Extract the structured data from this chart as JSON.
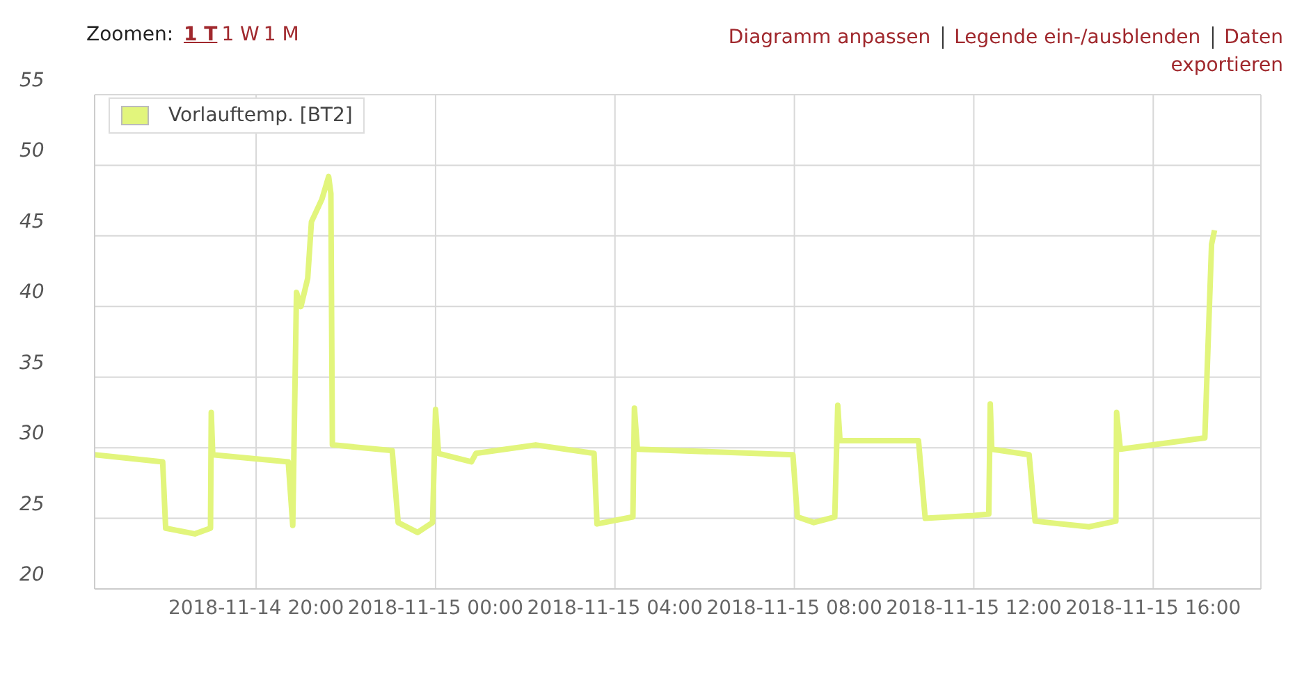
{
  "chart_data": {
    "type": "line",
    "x": [
      "2018-11-14T16:24",
      "2018-11-14T17:55",
      "2018-11-14T17:59",
      "2018-11-14T18:38",
      "2018-11-14T18:59",
      "2018-11-14T19:00",
      "2018-11-14T19:02",
      "2018-11-14T20:43",
      "2018-11-14T20:49",
      "2018-11-14T20:54",
      "2018-11-14T21:00",
      "2018-11-14T21:09",
      "2018-11-14T21:14",
      "2018-11-14T21:28",
      "2018-11-14T21:37",
      "2018-11-14T21:40",
      "2018-11-14T21:42",
      "2018-11-14T23:02",
      "2018-11-14T23:10",
      "2018-11-14T23:36",
      "2018-11-14T23:56",
      "2018-11-15T00:00",
      "2018-11-15T00:04",
      "2018-11-15T00:48",
      "2018-11-15T00:54",
      "2018-11-15T02:14",
      "2018-11-15T03:32",
      "2018-11-15T03:36",
      "2018-11-15T04:24",
      "2018-11-15T04:26",
      "2018-11-15T04:30",
      "2018-11-15T07:58",
      "2018-11-15T08:04",
      "2018-11-15T08:26",
      "2018-11-15T08:54",
      "2018-11-15T08:58",
      "2018-11-15T09:01",
      "2018-11-15T10:46",
      "2018-11-15T10:55",
      "2018-11-15T12:00",
      "2018-11-15T12:20",
      "2018-11-15T12:22",
      "2018-11-15T12:24",
      "2018-11-15T13:14",
      "2018-11-15T13:22",
      "2018-11-15T14:34",
      "2018-11-15T15:10",
      "2018-11-15T15:11",
      "2018-11-15T15:16",
      "2018-11-15T17:09",
      "2018-11-15T17:18",
      "2018-11-15T17:22"
    ],
    "series": [
      {
        "name": "Vorlauftemp. [BT2]",
        "color": "#e2f57c",
        "values": [
          29.5,
          29.0,
          24.3,
          23.9,
          24.3,
          32.5,
          29.5,
          29.0,
          24.5,
          41.0,
          40.0,
          42.0,
          46.0,
          47.6,
          49.2,
          48.0,
          30.2,
          29.8,
          24.7,
          24.0,
          24.7,
          32.7,
          29.6,
          29.0,
          29.6,
          30.2,
          29.6,
          24.6,
          25.1,
          32.8,
          29.9,
          29.5,
          25.1,
          24.7,
          25.1,
          33.0,
          30.5,
          30.5,
          25.0,
          25.2,
          25.3,
          33.1,
          29.9,
          29.5,
          24.8,
          24.4,
          24.8,
          32.5,
          29.9,
          30.7,
          44.4,
          45.4
        ]
      }
    ],
    "xlim": [
      "2018-11-14T16:24",
      "2018-11-15T18:24"
    ],
    "xticks": [
      {
        "value": "2018-11-14T20:00",
        "label": "2018-11-14 20:00"
      },
      {
        "value": "2018-11-15T00:00",
        "label": "2018-11-15 00:00"
      },
      {
        "value": "2018-11-15T04:00",
        "label": "2018-11-15 04:00"
      },
      {
        "value": "2018-11-15T08:00",
        "label": "2018-11-15 08:00"
      },
      {
        "value": "2018-11-15T12:00",
        "label": "2018-11-15 12:00"
      },
      {
        "value": "2018-11-15T16:00",
        "label": "2018-11-15 16:00"
      }
    ],
    "ylim": [
      20,
      55
    ],
    "yticks": [
      20,
      25,
      30,
      35,
      40,
      45,
      50,
      55
    ],
    "grid": true,
    "legend": "top left",
    "annotations": [
      "Zoomen:",
      "1 T",
      "1 W",
      "1 M",
      "Diagramm anpassen",
      "Legende ein-/ausblenden",
      "Daten exportieren"
    ]
  }
}
